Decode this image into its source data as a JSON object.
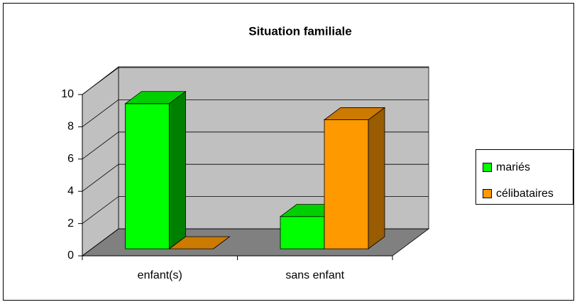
{
  "chart_data": {
    "type": "bar3d",
    "title": "Situation familiale",
    "categories": [
      "enfant(s)",
      "sans enfant"
    ],
    "series": [
      {
        "name": "mariés",
        "color": "#00ff00",
        "side": "#008000",
        "top": "#00d000",
        "values": [
          9,
          2
        ]
      },
      {
        "name": "célibataires",
        "color": "#ff9900",
        "side": "#995c00",
        "top": "#cc7a00",
        "values": [
          0,
          8
        ]
      }
    ],
    "ylim": [
      0,
      10
    ],
    "yticks": [
      0,
      2,
      4,
      6,
      8,
      10
    ],
    "grid": true,
    "legend": "right"
  }
}
